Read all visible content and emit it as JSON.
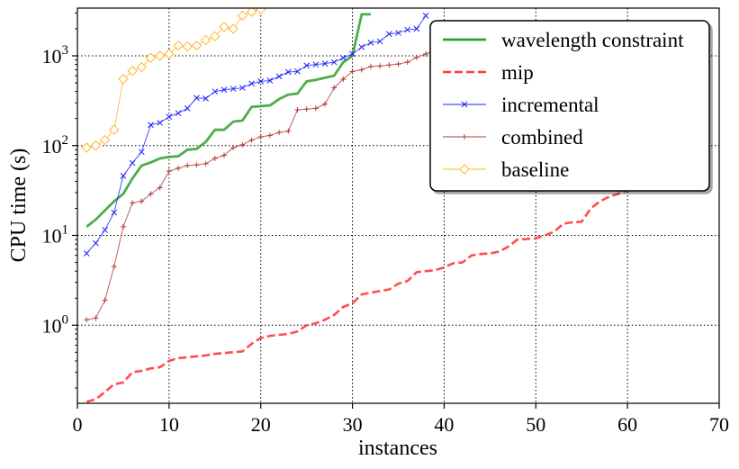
{
  "chart_data": {
    "type": "line",
    "xlabel": "instances",
    "ylabel": "CPU time (s)",
    "xlim": [
      0,
      70
    ],
    "ylim": [
      0.135,
      3400
    ],
    "yscale": "log",
    "grid": true,
    "legend_position": "top-right",
    "x_ticks": [
      0,
      10,
      20,
      30,
      40,
      50,
      60,
      70
    ],
    "y_ticks": [
      {
        "value": 1,
        "base": "10",
        "exp": "0"
      },
      {
        "value": 10,
        "base": "10",
        "exp": "1"
      },
      {
        "value": 100,
        "base": "10",
        "exp": "2"
      },
      {
        "value": 1000,
        "base": "10",
        "exp": "3"
      }
    ],
    "series": [
      {
        "name": "wavelength constraint",
        "color": "#2ca02c",
        "style": "solid",
        "marker": "none",
        "x": [
          1,
          2,
          3,
          4,
          5,
          6,
          7,
          8,
          9,
          10,
          11,
          12,
          13,
          14,
          15,
          16,
          17,
          18,
          19,
          20,
          21,
          22,
          23,
          24,
          25,
          26,
          27,
          28,
          29,
          30,
          31,
          32
        ],
        "y": [
          12.5,
          15,
          19,
          24,
          29,
          43,
          60,
          65,
          72,
          75,
          76,
          90,
          92,
          110,
          150,
          150,
          185,
          190,
          270,
          275,
          280,
          330,
          370,
          380,
          520,
          540,
          570,
          600,
          850,
          1000,
          2900,
          2900
        ]
      },
      {
        "name": "mip",
        "color": "#ff3b3b",
        "style": "dashed",
        "marker": "none",
        "x": [
          1,
          2,
          3,
          4,
          5,
          6,
          7,
          8,
          9,
          10,
          11,
          12,
          13,
          14,
          15,
          16,
          17,
          18,
          19,
          20,
          21,
          22,
          23,
          24,
          25,
          26,
          27,
          28,
          29,
          30,
          31,
          32,
          33,
          34,
          35,
          36,
          37,
          38,
          39,
          40,
          41,
          42,
          43,
          44,
          45,
          46,
          47,
          48,
          49,
          50,
          51,
          52,
          53,
          54,
          55,
          56,
          57,
          58,
          59,
          60
        ],
        "y": [
          0.14,
          0.15,
          0.18,
          0.22,
          0.23,
          0.3,
          0.31,
          0.33,
          0.34,
          0.4,
          0.43,
          0.44,
          0.45,
          0.46,
          0.48,
          0.49,
          0.5,
          0.51,
          0.62,
          0.72,
          0.76,
          0.78,
          0.8,
          0.85,
          1.0,
          1.05,
          1.15,
          1.3,
          1.6,
          1.75,
          2.2,
          2.3,
          2.4,
          2.5,
          2.9,
          3.1,
          3.9,
          4.0,
          4.1,
          4.4,
          4.9,
          5.0,
          6.0,
          6.2,
          6.3,
          6.6,
          7.5,
          9.0,
          9.1,
          9.3,
          10.0,
          11.0,
          13.5,
          14.0,
          14.2,
          20.0,
          24.0,
          27.0,
          29.0,
          32.0
        ]
      },
      {
        "name": "incremental",
        "color": "#1f1fff",
        "style": "solid",
        "marker": "x",
        "x": [
          1,
          2,
          3,
          4,
          5,
          6,
          7,
          8,
          9,
          10,
          11,
          12,
          13,
          14,
          15,
          16,
          17,
          18,
          19,
          20,
          21,
          22,
          23,
          24,
          25,
          26,
          27,
          28,
          29,
          30,
          31,
          32,
          33,
          34,
          35,
          36,
          37,
          38
        ],
        "y": [
          6.3,
          8.2,
          11.5,
          18,
          46,
          64,
          85,
          170,
          180,
          210,
          230,
          260,
          340,
          335,
          400,
          420,
          430,
          440,
          490,
          520,
          530,
          590,
          660,
          670,
          780,
          800,
          820,
          850,
          950,
          1050,
          1250,
          1400,
          1450,
          1750,
          1800,
          1950,
          2000,
          2800
        ]
      },
      {
        "name": "combined",
        "color": "#b03a3a",
        "style": "solid",
        "marker": "+",
        "x": [
          1,
          2,
          3,
          4,
          5,
          6,
          7,
          8,
          9,
          10,
          11,
          12,
          13,
          14,
          15,
          16,
          17,
          18,
          19,
          20,
          21,
          22,
          23,
          24,
          25,
          26,
          27,
          28,
          29,
          30,
          31,
          32,
          33,
          34,
          35,
          36,
          37,
          38,
          39,
          40
        ],
        "y": [
          1.15,
          1.2,
          1.9,
          4.5,
          12.5,
          23,
          24,
          29,
          34,
          52,
          56,
          60,
          61,
          63,
          72,
          78,
          95,
          102,
          115,
          125,
          130,
          140,
          145,
          250,
          255,
          260,
          290,
          440,
          550,
          670,
          700,
          760,
          770,
          790,
          810,
          850,
          960,
          1050,
          1150,
          1200
        ]
      },
      {
        "name": "baseline",
        "color": "#ffb52e",
        "style": "solid",
        "marker": "diamond",
        "x": [
          1,
          2,
          3,
          4,
          5,
          6,
          7,
          8,
          9,
          10,
          11,
          12,
          13,
          14,
          15,
          16,
          17,
          18,
          19,
          20
        ],
        "y": [
          95,
          100,
          115,
          150,
          550,
          680,
          750,
          950,
          1000,
          1050,
          1300,
          1270,
          1300,
          1500,
          1650,
          2100,
          2000,
          2800,
          3100,
          3300
        ]
      }
    ]
  }
}
